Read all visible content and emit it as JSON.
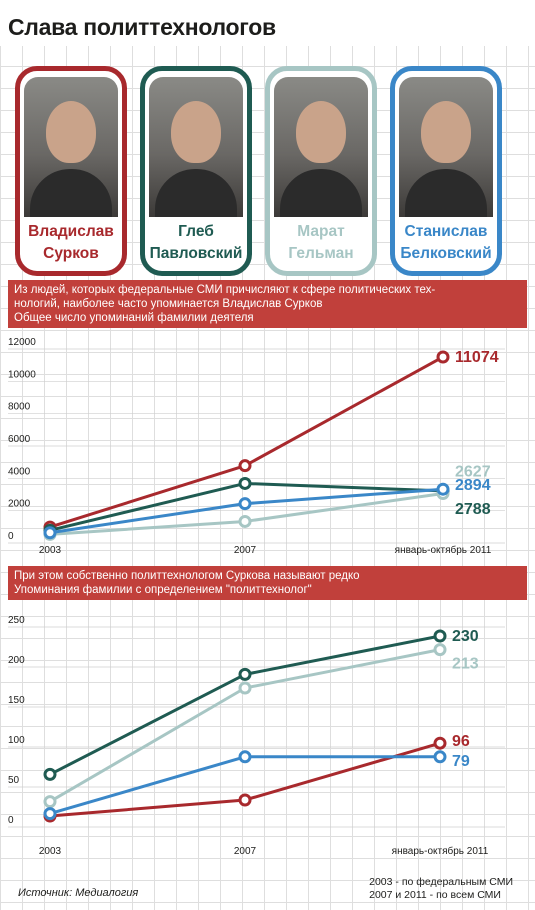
{
  "title": "Слава политтехнологов",
  "people": [
    {
      "name": "Владислав\nСурков",
      "color": "#a8292d"
    },
    {
      "name": "Глеб\nПавловский",
      "color": "#1f5b52"
    },
    {
      "name": "Марат\nГельман",
      "color": "#a7c6c4"
    },
    {
      "name": "Станислав\nБелковский",
      "color": "#3a87c8"
    }
  ],
  "banner1": {
    "line1": "Из людей, которых федеральные СМИ причисляют к сфере политических тех-",
    "line2": "нологий, наиболее часто упоминается Владислав Сурков",
    "line3": "Общее число упоминаний фамилии деятеля"
  },
  "banner2": {
    "line1": "При этом собственно политтехнологом Суркова называют редко",
    "line2": "Упоминания фамилии с определением \"политтехнолог\""
  },
  "chart_data": [
    {
      "type": "line",
      "title": "Общее число упоминаний фамилии деятеля",
      "categories": [
        "2003",
        "2007",
        "январь-октябрь 2011"
      ],
      "ylim": [
        0,
        12000
      ],
      "yticks": [
        "0",
        "2000",
        "4000",
        "6000",
        "8000",
        "10000",
        "12000"
      ],
      "series": [
        {
          "name": "Владислав Сурков",
          "color": "#a8292d",
          "values": [
            550,
            4350,
            11074
          ],
          "label": "11074"
        },
        {
          "name": "Глеб Павловский",
          "color": "#1f5b52",
          "values": [
            350,
            3250,
            2788
          ],
          "label": "2788"
        },
        {
          "name": "Марат Гельман",
          "color": "#a7c6c4",
          "values": [
            100,
            900,
            2627
          ],
          "label": "2627"
        },
        {
          "name": "Станислав Белковский",
          "color": "#3a87c8",
          "values": [
            200,
            2000,
            2894
          ],
          "label": "2894"
        }
      ]
    },
    {
      "type": "line",
      "title": "Упоминания фамилии с определением \"политтехнолог\"",
      "categories": [
        "2003",
        "2007",
        "январь-октябрь 2011"
      ],
      "ylim": [
        0,
        250
      ],
      "yticks": [
        "0",
        "50",
        "100",
        "150",
        "200",
        "250"
      ],
      "series": [
        {
          "name": "Глеб Павловский",
          "color": "#1f5b52",
          "values": [
            57,
            182,
            230
          ],
          "label": "230"
        },
        {
          "name": "Марат Гельман",
          "color": "#a7c6c4",
          "values": [
            23,
            165,
            213
          ],
          "label": "213"
        },
        {
          "name": "Владислав Сурков",
          "color": "#a8292d",
          "values": [
            5,
            25,
            96
          ],
          "label": "96"
        },
        {
          "name": "Станислав Белковский",
          "color": "#3a87c8",
          "values": [
            8,
            79,
            79
          ],
          "label": "79"
        }
      ]
    }
  ],
  "source": "Источник: Медиалогия",
  "note": {
    "line1": "2003 - по федеральным СМИ",
    "line2": "2007 и 2011 - по всем СМИ"
  }
}
